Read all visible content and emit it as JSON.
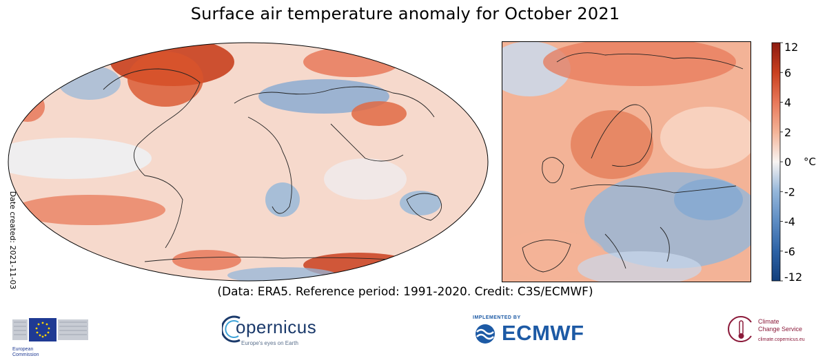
{
  "title": "Surface air temperature anomaly for October 2021",
  "date_created": "Date created: 2021-11-03",
  "credit": "(Data: ERA5.  Reference period: 1991-2020.  Credit: C3S/ECMWF)",
  "colorbar": {
    "unit": "°C",
    "ticks": [
      "12",
      "6",
      "4",
      "2",
      "0",
      "-2",
      "-4",
      "-6",
      "-12"
    ],
    "colors": [
      "#fbf3f0",
      "#f9d8c8",
      "#f3b397",
      "#e8795a",
      "#c9401f",
      "#8c1a10"
    ],
    "cool_colors": [
      "#eef2f8",
      "#c9d9ec",
      "#94b6da",
      "#5d8cc3",
      "#2d62a5",
      "#123f7c"
    ]
  },
  "logos": {
    "ec": {
      "line1": "European",
      "line2": "Commission"
    },
    "copernicus": {
      "name": "opernicus",
      "tagline": "Europe's eyes on Earth"
    },
    "ecmwf": {
      "implemented": "IMPLEMENTED BY",
      "name": "ECMWF"
    },
    "c3s": {
      "line1": "Climate",
      "line2": "Change Service",
      "url": "climate.copernicus.eu"
    }
  }
}
